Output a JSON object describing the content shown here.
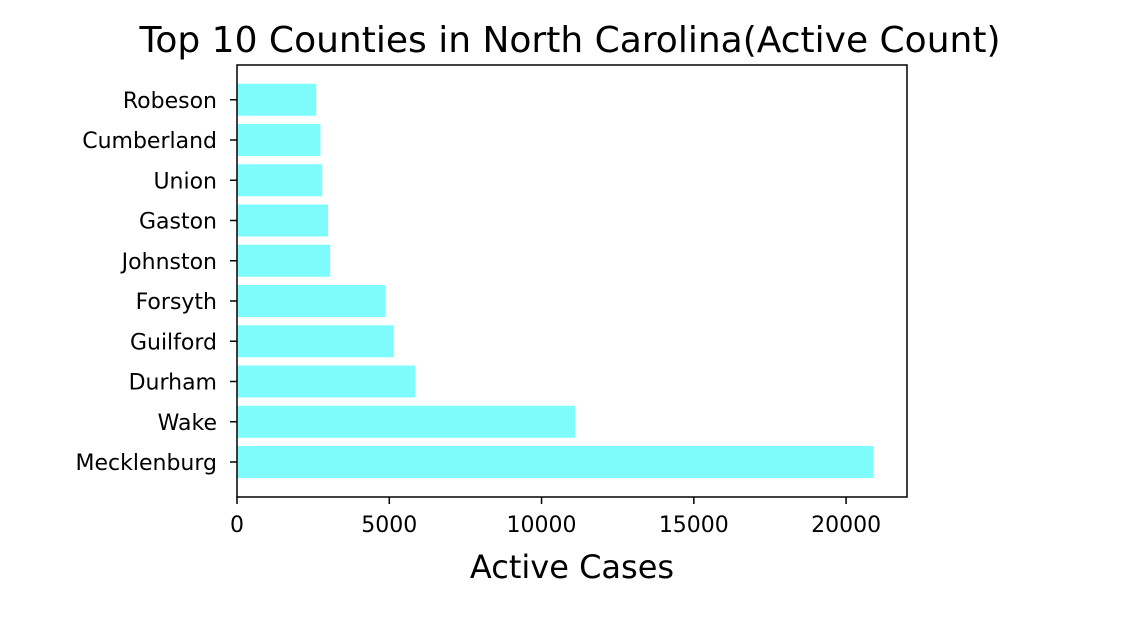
{
  "chart_data": {
    "type": "bar",
    "orientation": "horizontal",
    "title": "Top 10 Counties in North Carolina(Active Count)",
    "xlabel": "Active Cases",
    "ylabel": "",
    "categories": [
      "Mecklenburg",
      "Wake",
      "Durham",
      "Guilford",
      "Forsyth",
      "Johnston",
      "Gaston",
      "Union",
      "Cumberland",
      "Robeson"
    ],
    "values": [
      20900,
      11100,
      5850,
      5150,
      4880,
      3060,
      2990,
      2800,
      2740,
      2600
    ],
    "xlim": [
      0,
      22000
    ],
    "xticks": [
      "0",
      "5000",
      "10000",
      "15000",
      "20000"
    ],
    "bar_color": "#7efcfc",
    "grid": false,
    "legend": false
  }
}
